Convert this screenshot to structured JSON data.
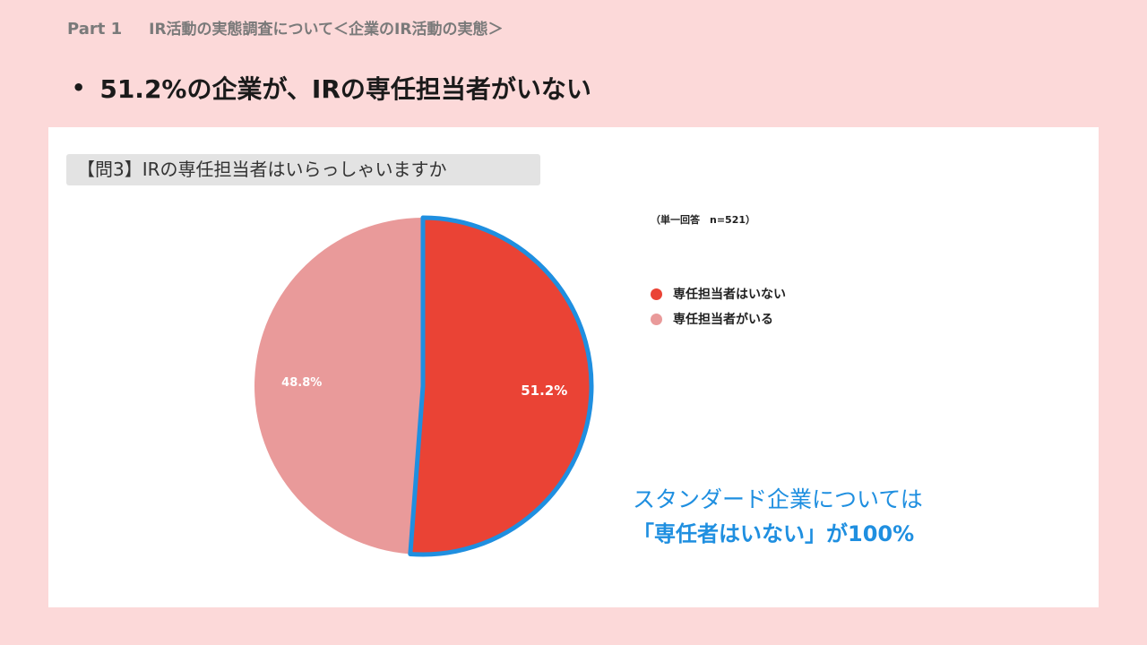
{
  "header": {
    "part": "Part 1",
    "subtitle": "IR活動の実態調査について＜企業のIR活動の実態＞"
  },
  "headline": {
    "bullet": "•",
    "text": "51.2%の企業が、IRの専任担当者がいない"
  },
  "question": "【問3】IRの専任担当者はいらっしゃいますか",
  "note": "（単一回答　n=521）",
  "callout": {
    "line1": "スタンダード企業については",
    "line2": "「専任者はいない」が100%"
  },
  "colors": {
    "background": "#fcd9d9",
    "no_dedicated": "#ea4335",
    "has_dedicated": "#e99a9a",
    "highlight": "#1f8fe0"
  },
  "chart_data": {
    "type": "pie",
    "categories": [
      "専任担当者はいない",
      "専任担当者がいる"
    ],
    "values": [
      51.2,
      48.8
    ],
    "data_labels": [
      "51.2%",
      "48.8%"
    ],
    "colors": [
      "#ea4335",
      "#e99a9a"
    ],
    "highlighted_slice": 0,
    "legend_position": "right"
  }
}
